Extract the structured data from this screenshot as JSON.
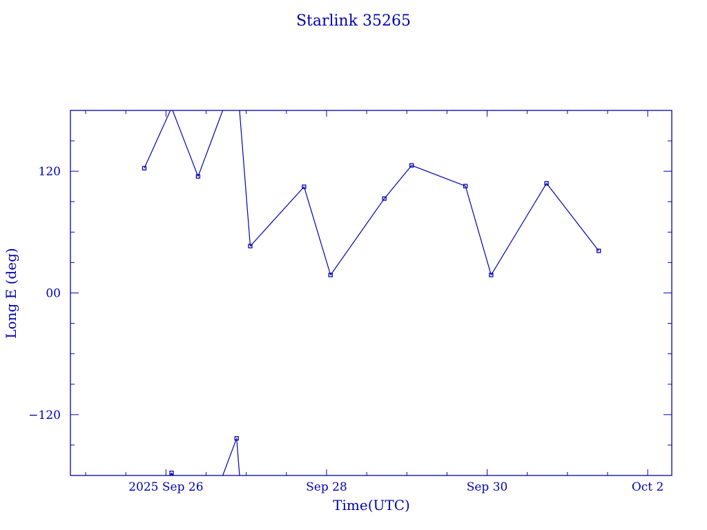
{
  "chart_data": {
    "type": "line",
    "title": "Starlink 35265",
    "xlabel": "Time(UTC)",
    "ylabel": "Long E (deg)",
    "x_units": "day of September 2025 (UTC)",
    "xlim": [
      24.81,
      32.3
    ],
    "ylim": [
      -180,
      180
    ],
    "x_ticks": [
      {
        "value": 26,
        "label": "2025 Sep 26"
      },
      {
        "value": 28,
        "label": "Sep 28"
      },
      {
        "value": 30,
        "label": "Sep 30"
      },
      {
        "value": 32,
        "label": "Oct  2"
      }
    ],
    "x_minor_step": 0.5,
    "y_ticks": [
      {
        "value": 120,
        "label": "120"
      },
      {
        "value": 0,
        "label": "00"
      },
      {
        "value": -120,
        "label": "−120"
      }
    ],
    "y_minor_step": 30,
    "wrap_longitude": true,
    "color": "#0000b0",
    "series": [
      {
        "name": "Starlink 35265",
        "x": [
          25.73,
          26.07,
          26.4,
          26.88,
          27.05,
          27.72,
          28.05,
          28.72,
          29.06,
          29.73,
          30.05,
          30.74,
          31.39
        ],
        "y": [
          123.0,
          -177.4,
          114.9,
          -143.4,
          46.2,
          104.7,
          17.7,
          93.1,
          125.8,
          105.4,
          17.7,
          108.1,
          41.5
        ]
      }
    ]
  }
}
